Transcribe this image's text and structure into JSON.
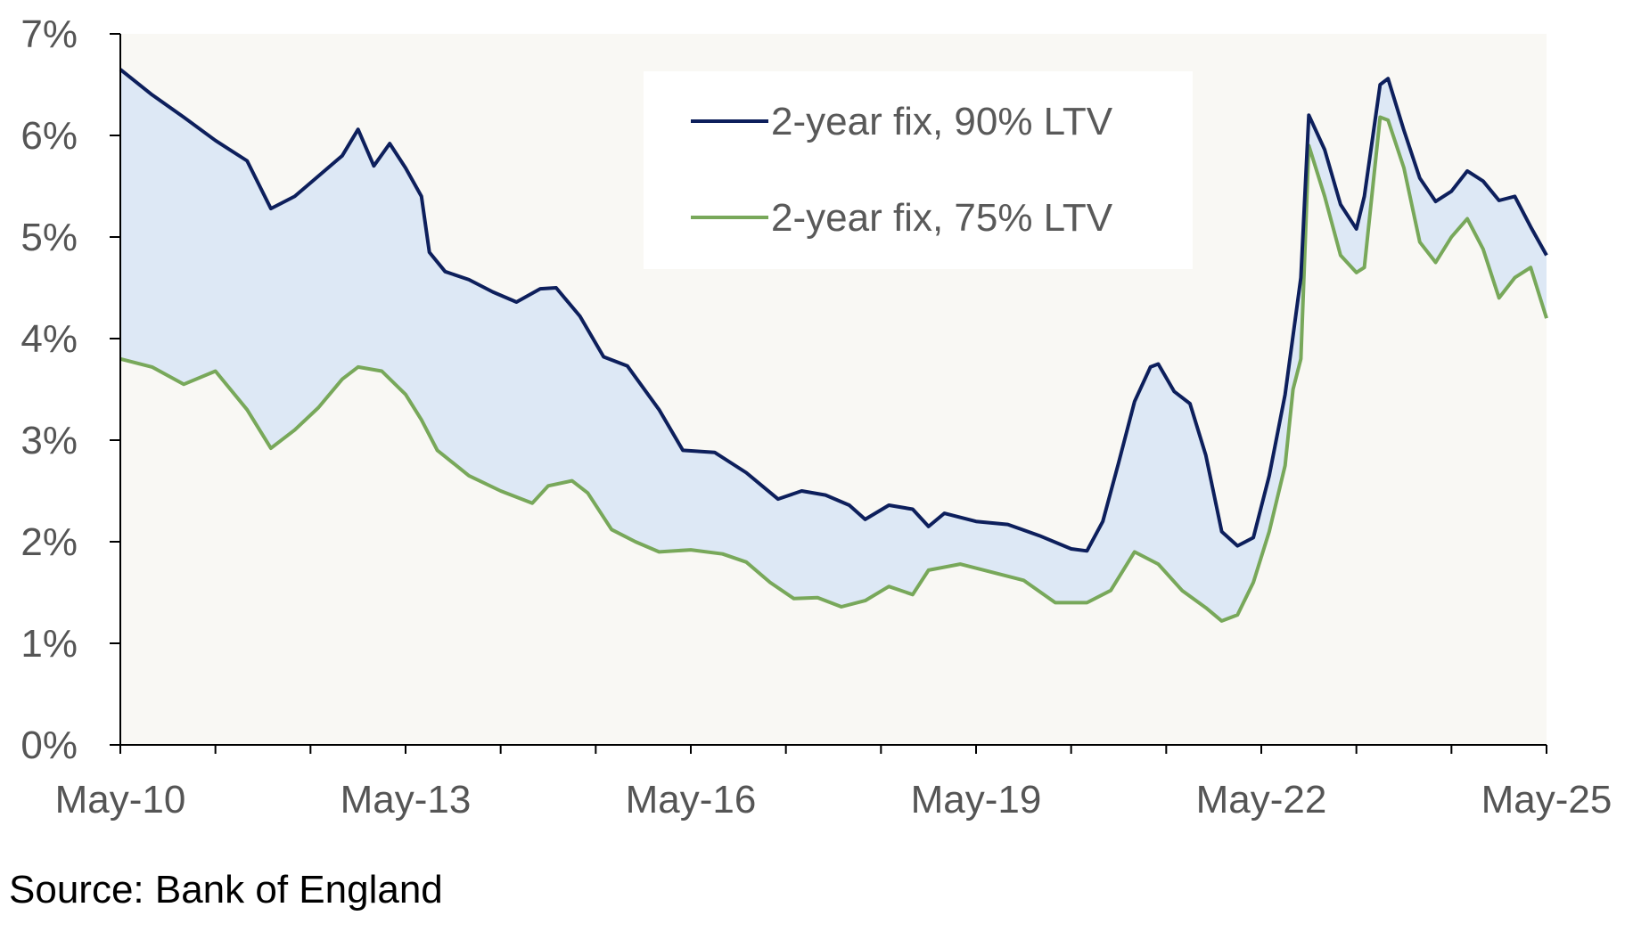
{
  "source_note": "Source: Bank of England",
  "colors": {
    "plot_background": "#f9f8f4",
    "spread_fill": "#dde8f5",
    "series_90": "#0d1f5c",
    "series_75": "#78a85a",
    "axis": "#000000",
    "tick_text": "#555555",
    "legend_background": "#ffffff"
  },
  "chart_data": {
    "type": "line",
    "legend_position": "top-center",
    "grid": false,
    "ylim": [
      0,
      7
    ],
    "y_ticks": [
      "0%",
      "1%",
      "2%",
      "3%",
      "4%",
      "5%",
      "6%",
      "7%"
    ],
    "x_range": [
      "2010-05",
      "2025-05"
    ],
    "x_tick_labels": [
      "May-10",
      "May-13",
      "May-16",
      "May-19",
      "May-22",
      "May-25"
    ],
    "x_tick_dates": [
      "2010-05",
      "2013-05",
      "2016-05",
      "2019-05",
      "2022-05",
      "2025-05"
    ],
    "shaded_between_series": true,
    "series": [
      {
        "name": "2-year fix, 90% LTV",
        "color": "#0d1f5c",
        "points": [
          [
            "2010-05",
            6.65
          ],
          [
            "2010-09",
            6.4
          ],
          [
            "2011-01",
            6.18
          ],
          [
            "2011-05",
            5.95
          ],
          [
            "2011-09",
            5.75
          ],
          [
            "2011-12",
            5.28
          ],
          [
            "2012-03",
            5.4
          ],
          [
            "2012-06",
            5.6
          ],
          [
            "2012-09",
            5.8
          ],
          [
            "2012-11",
            6.06
          ],
          [
            "2013-01",
            5.7
          ],
          [
            "2013-03",
            5.92
          ],
          [
            "2013-05",
            5.68
          ],
          [
            "2013-07",
            5.4
          ],
          [
            "2013-08",
            4.85
          ],
          [
            "2013-10",
            4.66
          ],
          [
            "2014-01",
            4.58
          ],
          [
            "2014-04",
            4.46
          ],
          [
            "2014-07",
            4.36
          ],
          [
            "2014-10",
            4.49
          ],
          [
            "2014-12",
            4.5
          ],
          [
            "2015-03",
            4.22
          ],
          [
            "2015-06",
            3.82
          ],
          [
            "2015-09",
            3.73
          ],
          [
            "2016-01",
            3.3
          ],
          [
            "2016-04",
            2.9
          ],
          [
            "2016-08",
            2.88
          ],
          [
            "2016-12",
            2.68
          ],
          [
            "2017-02",
            2.55
          ],
          [
            "2017-04",
            2.42
          ],
          [
            "2017-07",
            2.5
          ],
          [
            "2017-10",
            2.46
          ],
          [
            "2018-01",
            2.36
          ],
          [
            "2018-03",
            2.22
          ],
          [
            "2018-06",
            2.36
          ],
          [
            "2018-09",
            2.32
          ],
          [
            "2018-11",
            2.15
          ],
          [
            "2019-01",
            2.28
          ],
          [
            "2019-05",
            2.2
          ],
          [
            "2019-09",
            2.17
          ],
          [
            "2020-01",
            2.06
          ],
          [
            "2020-05",
            1.93
          ],
          [
            "2020-07",
            1.91
          ],
          [
            "2020-09",
            2.2
          ],
          [
            "2020-11",
            2.78
          ],
          [
            "2021-01",
            3.38
          ],
          [
            "2021-03",
            3.72
          ],
          [
            "2021-04",
            3.75
          ],
          [
            "2021-06",
            3.48
          ],
          [
            "2021-08",
            3.36
          ],
          [
            "2021-10",
            2.85
          ],
          [
            "2021-12",
            2.1
          ],
          [
            "2022-02",
            1.96
          ],
          [
            "2022-04",
            2.04
          ],
          [
            "2022-06",
            2.65
          ],
          [
            "2022-08",
            3.45
          ],
          [
            "2022-10",
            4.6
          ],
          [
            "2022-11",
            6.2
          ],
          [
            "2023-01",
            5.86
          ],
          [
            "2023-03",
            5.32
          ],
          [
            "2023-05",
            5.08
          ],
          [
            "2023-06",
            5.4
          ],
          [
            "2023-08",
            6.5
          ],
          [
            "2023-09",
            6.56
          ],
          [
            "2023-11",
            6.05
          ],
          [
            "2024-01",
            5.58
          ],
          [
            "2024-03",
            5.35
          ],
          [
            "2024-05",
            5.45
          ],
          [
            "2024-07",
            5.65
          ],
          [
            "2024-09",
            5.55
          ],
          [
            "2024-11",
            5.36
          ],
          [
            "2025-01",
            5.4
          ],
          [
            "2025-03",
            5.1
          ],
          [
            "2025-05",
            4.82
          ]
        ]
      },
      {
        "name": "2-year fix, 75% LTV",
        "color": "#78a85a",
        "points": [
          [
            "2010-05",
            3.8
          ],
          [
            "2010-09",
            3.72
          ],
          [
            "2011-01",
            3.55
          ],
          [
            "2011-05",
            3.68
          ],
          [
            "2011-09",
            3.3
          ],
          [
            "2011-12",
            2.92
          ],
          [
            "2012-03",
            3.1
          ],
          [
            "2012-06",
            3.32
          ],
          [
            "2012-09",
            3.6
          ],
          [
            "2012-11",
            3.72
          ],
          [
            "2013-02",
            3.68
          ],
          [
            "2013-05",
            3.45
          ],
          [
            "2013-07",
            3.2
          ],
          [
            "2013-09",
            2.9
          ],
          [
            "2014-01",
            2.65
          ],
          [
            "2014-05",
            2.5
          ],
          [
            "2014-09",
            2.38
          ],
          [
            "2014-11",
            2.55
          ],
          [
            "2015-02",
            2.6
          ],
          [
            "2015-04",
            2.48
          ],
          [
            "2015-07",
            2.12
          ],
          [
            "2015-10",
            2.0
          ],
          [
            "2016-01",
            1.9
          ],
          [
            "2016-05",
            1.92
          ],
          [
            "2016-09",
            1.88
          ],
          [
            "2016-12",
            1.8
          ],
          [
            "2017-03",
            1.6
          ],
          [
            "2017-06",
            1.44
          ],
          [
            "2017-09",
            1.45
          ],
          [
            "2017-12",
            1.36
          ],
          [
            "2018-03",
            1.42
          ],
          [
            "2018-06",
            1.56
          ],
          [
            "2018-09",
            1.48
          ],
          [
            "2018-11",
            1.72
          ],
          [
            "2019-03",
            1.78
          ],
          [
            "2019-07",
            1.7
          ],
          [
            "2019-11",
            1.62
          ],
          [
            "2020-03",
            1.4
          ],
          [
            "2020-07",
            1.4
          ],
          [
            "2020-10",
            1.52
          ],
          [
            "2021-01",
            1.9
          ],
          [
            "2021-04",
            1.78
          ],
          [
            "2021-07",
            1.52
          ],
          [
            "2021-10",
            1.35
          ],
          [
            "2021-12",
            1.22
          ],
          [
            "2022-02",
            1.28
          ],
          [
            "2022-04",
            1.6
          ],
          [
            "2022-06",
            2.1
          ],
          [
            "2022-08",
            2.75
          ],
          [
            "2022-09",
            3.5
          ],
          [
            "2022-10",
            3.8
          ],
          [
            "2022-11",
            5.9
          ],
          [
            "2023-01",
            5.4
          ],
          [
            "2023-03",
            4.82
          ],
          [
            "2023-05",
            4.65
          ],
          [
            "2023-06",
            4.7
          ],
          [
            "2023-08",
            6.18
          ],
          [
            "2023-09",
            6.15
          ],
          [
            "2023-11",
            5.68
          ],
          [
            "2024-01",
            4.95
          ],
          [
            "2024-03",
            4.75
          ],
          [
            "2024-05",
            5.0
          ],
          [
            "2024-07",
            5.18
          ],
          [
            "2024-09",
            4.88
          ],
          [
            "2024-11",
            4.4
          ],
          [
            "2025-01",
            4.6
          ],
          [
            "2025-03",
            4.7
          ],
          [
            "2025-05",
            4.2
          ]
        ]
      }
    ]
  }
}
